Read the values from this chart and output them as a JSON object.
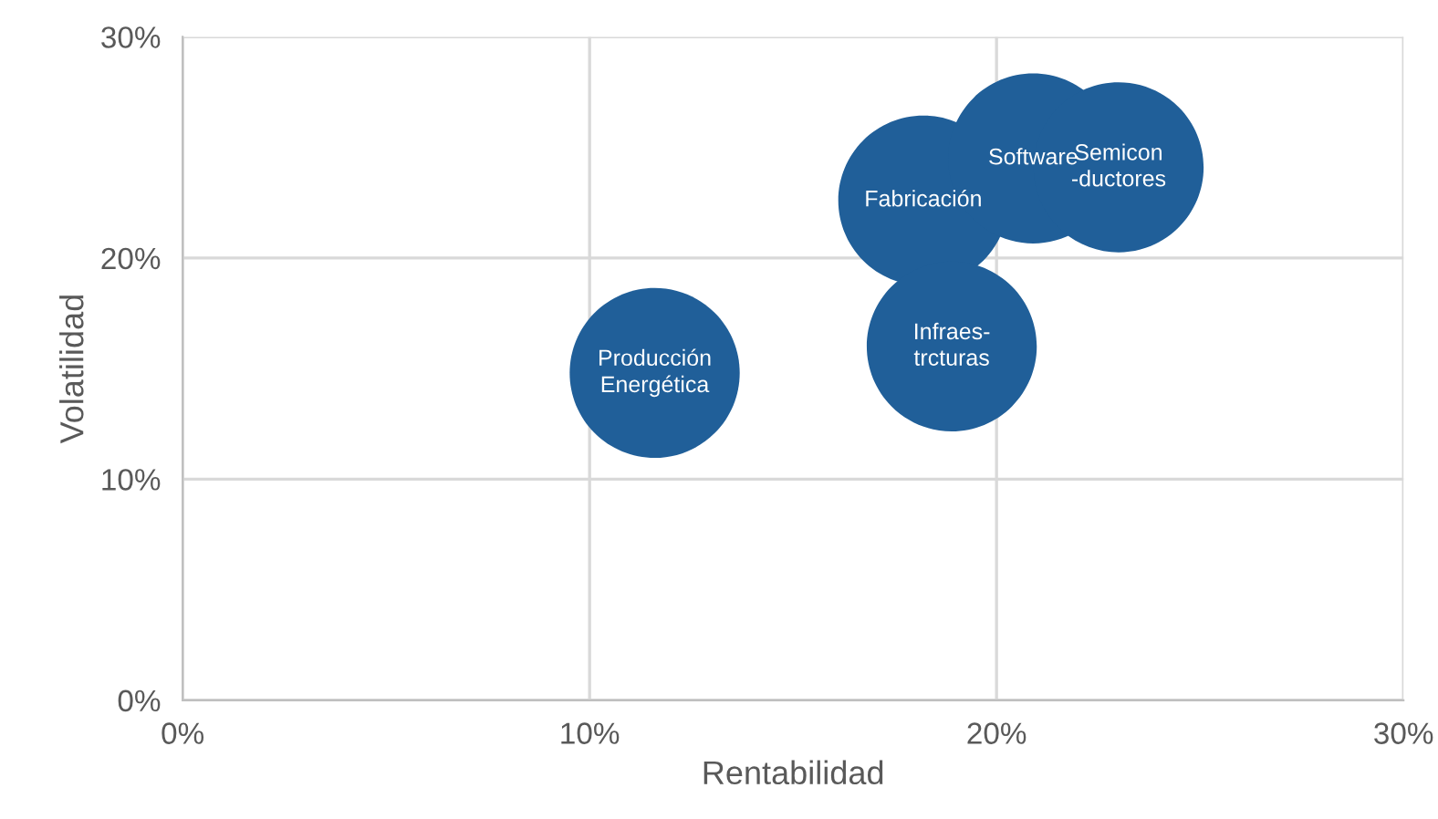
{
  "chart_data": {
    "type": "bubble",
    "xlabel": "Rentabilidad",
    "ylabel": "Volatilidad",
    "xlim": [
      0,
      30
    ],
    "ylim": [
      0,
      30
    ],
    "xticks": [
      {
        "value": 0,
        "label": "0%"
      },
      {
        "value": 10,
        "label": "10%"
      },
      {
        "value": 20,
        "label": "20%"
      },
      {
        "value": 30,
        "label": "30%"
      }
    ],
    "yticks": [
      {
        "value": 0,
        "label": "0%"
      },
      {
        "value": 10,
        "label": "10%"
      },
      {
        "value": 20,
        "label": "20%"
      },
      {
        "value": 30,
        "label": "30%"
      }
    ],
    "grid": true,
    "legend": false,
    "series": [
      {
        "name": "Fabricación",
        "color": "#205f99",
        "x": [
          18.2
        ],
        "values": [
          22.6
        ],
        "sizes": [
          1
        ]
      },
      {
        "name": "Software",
        "color": "#205f99",
        "x": [
          20.9
        ],
        "values": [
          24.5
        ],
        "sizes": [
          1
        ]
      },
      {
        "name": "Semicon\n-ductores",
        "color": "#205f99",
        "x": [
          23.0
        ],
        "values": [
          24.1
        ],
        "sizes": [
          1
        ]
      },
      {
        "name": "Infraes-\ntrcturas",
        "color": "#205f99",
        "x": [
          18.9
        ],
        "values": [
          16.0
        ],
        "sizes": [
          1
        ]
      },
      {
        "name": "Producción\nEnergética",
        "color": "#205f99",
        "x": [
          11.6
        ],
        "values": [
          14.8
        ],
        "sizes": [
          1
        ]
      }
    ]
  }
}
